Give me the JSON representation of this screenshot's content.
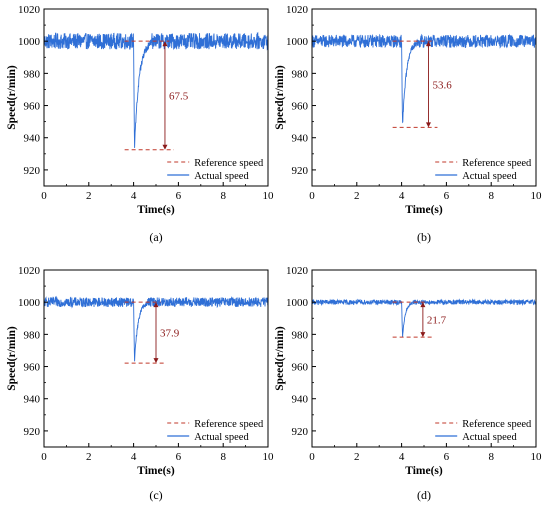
{
  "chart_data": [
    {
      "panel": "(a)",
      "type": "line",
      "xlabel": "Time(s)",
      "ylabel": "Speed(r/min)",
      "xlim": [
        0,
        10
      ],
      "ylim": [
        910,
        1020
      ],
      "xticks": [
        "0",
        "2",
        "4",
        "6",
        "8",
        "10"
      ],
      "yticks": [
        "920",
        "940",
        "960",
        "980",
        "1000",
        "1020"
      ],
      "legend": {
        "position": "bottom-right",
        "entries": [
          "Reference speed",
          "Actual speed"
        ]
      },
      "series": [
        {
          "name": "Reference speed",
          "style": "dashed",
          "color": "#c0392b",
          "x": [
            0,
            10
          ],
          "y": [
            1000,
            1000
          ]
        },
        {
          "name": "Actual speed",
          "style": "solid",
          "color": "#2f6fd6",
          "noise_amplitude": 5,
          "dip_time": 4.0,
          "dip_min": 932.5,
          "recovery_end": 4.8
        }
      ],
      "annotation": {
        "text": "67.5",
        "x": 5.4,
        "y_top": 1000,
        "y_bottom": 932.5
      }
    },
    {
      "panel": "(b)",
      "type": "line",
      "xlabel": "Time(s)",
      "ylabel": "Speed(r/min)",
      "xlim": [
        0,
        10
      ],
      "ylim": [
        910,
        1020
      ],
      "xticks": [
        "0",
        "2",
        "4",
        "6",
        "8",
        "10"
      ],
      "yticks": [
        "920",
        "940",
        "960",
        "980",
        "1000",
        "1020"
      ],
      "legend": {
        "position": "bottom-right",
        "entries": [
          "Reference speed",
          "Actual speed"
        ]
      },
      "series": [
        {
          "name": "Reference speed",
          "style": "dashed",
          "color": "#c0392b",
          "x": [
            0,
            10
          ],
          "y": [
            1000,
            1000
          ]
        },
        {
          "name": "Actual speed",
          "style": "solid",
          "color": "#2f6fd6",
          "noise_amplitude": 4,
          "dip_time": 4.0,
          "dip_min": 946.4,
          "recovery_end": 4.7
        }
      ],
      "annotation": {
        "text": "53.6",
        "x": 5.2,
        "y_top": 1000,
        "y_bottom": 946.4
      }
    },
    {
      "panel": "(c)",
      "type": "line",
      "xlabel": "Time(s)",
      "ylabel": "Speed(r/min)",
      "xlim": [
        0,
        10
      ],
      "ylim": [
        910,
        1020
      ],
      "xticks": [
        "0",
        "2",
        "4",
        "6",
        "8",
        "10"
      ],
      "yticks": [
        "920",
        "940",
        "960",
        "980",
        "1000",
        "1020"
      ],
      "legend": {
        "position": "bottom-right",
        "entries": [
          "Reference speed",
          "Actual speed"
        ]
      },
      "series": [
        {
          "name": "Reference speed",
          "style": "dashed",
          "color": "#c0392b",
          "x": [
            0,
            10
          ],
          "y": [
            1000,
            1000
          ]
        },
        {
          "name": "Actual speed",
          "style": "solid",
          "color": "#2f6fd6",
          "noise_amplitude": 3,
          "dip_time": 4.0,
          "dip_min": 962.1,
          "recovery_end": 4.6
        }
      ],
      "annotation": {
        "text": "37.9",
        "x": 5.0,
        "y_top": 1000,
        "y_bottom": 962.1
      }
    },
    {
      "panel": "(d)",
      "type": "line",
      "xlabel": "Time(s)",
      "ylabel": "Speed(r/min)",
      "xlim": [
        0,
        10
      ],
      "ylim": [
        910,
        1020
      ],
      "xticks": [
        "0",
        "2",
        "4",
        "6",
        "8",
        "10"
      ],
      "yticks": [
        "920",
        "940",
        "960",
        "980",
        "1000",
        "1020"
      ],
      "legend": {
        "position": "bottom-right",
        "entries": [
          "Reference speed",
          "Actual speed"
        ]
      },
      "series": [
        {
          "name": "Reference speed",
          "style": "dashed",
          "color": "#c0392b",
          "x": [
            0,
            10
          ],
          "y": [
            1000,
            1000
          ]
        },
        {
          "name": "Actual speed",
          "style": "solid",
          "color": "#2f6fd6",
          "noise_amplitude": 1.5,
          "dip_time": 4.0,
          "dip_min": 978.3,
          "recovery_end": 4.5
        }
      ],
      "annotation": {
        "text": "21.7",
        "x": 4.95,
        "y_top": 1000,
        "y_bottom": 978.3
      }
    }
  ]
}
